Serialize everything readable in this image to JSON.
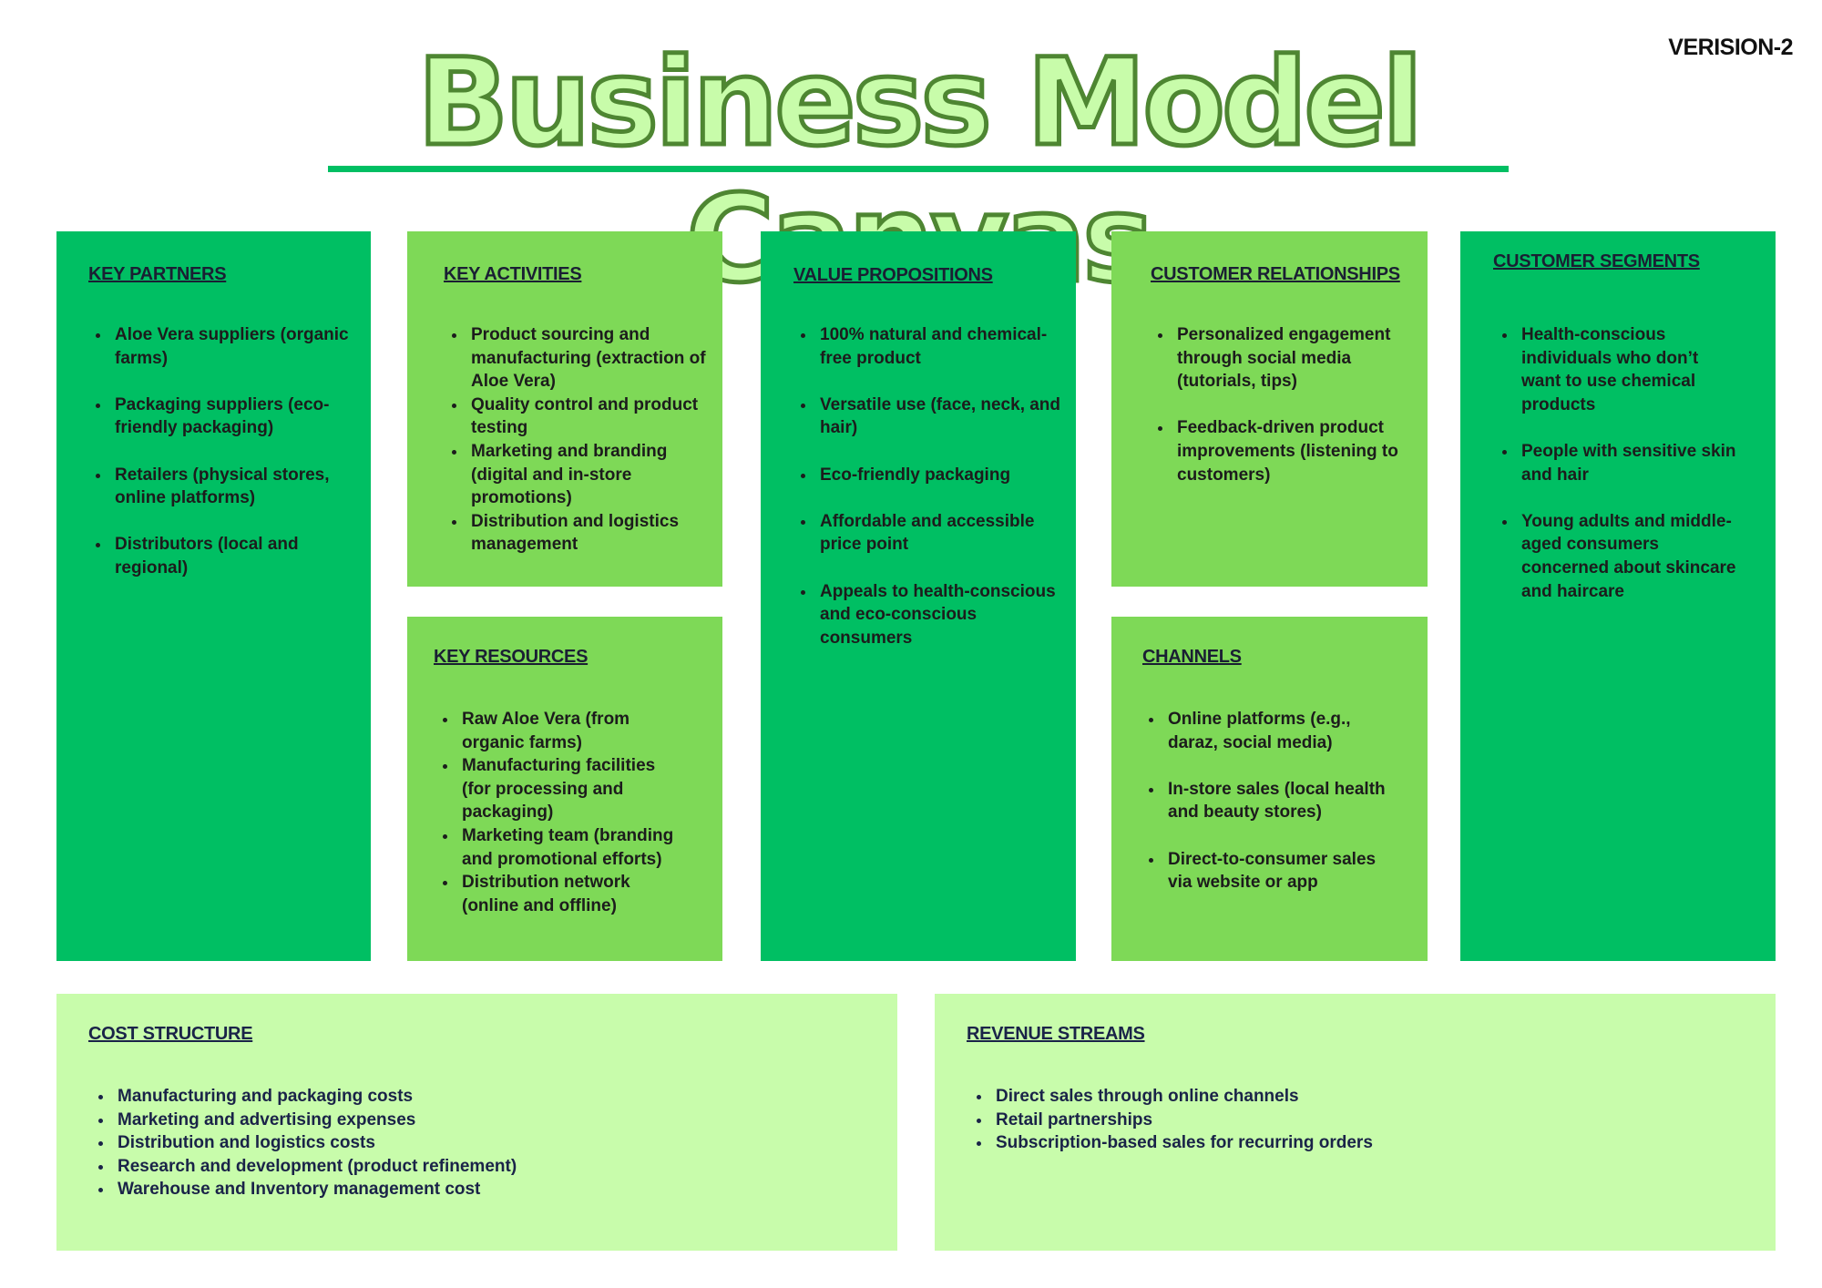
{
  "title": "Business Model Canvas",
  "version": "VERISION-2",
  "colors": {
    "dark_green": "#00bf63",
    "mid_green": "#7ed957",
    "light_green": "#c8fcab",
    "heading_navy": "#1a2348"
  },
  "key_partners": {
    "heading": "KEY PARTNERS",
    "items": [
      "Aloe Vera suppliers (organic farms)",
      "Packaging suppliers (eco-friendly packaging)",
      "Retailers (physical stores, online platforms)",
      "Distributors (local and regional)"
    ]
  },
  "key_activities": {
    "heading": "KEY ACTIVITIES",
    "items": [
      "Product sourcing and manufacturing (extraction of Aloe Vera)",
      "Quality control and product testing",
      "Marketing and branding (digital and in-store promotions)",
      "Distribution and logistics management"
    ]
  },
  "key_resources": {
    "heading": "KEY RESOURCES",
    "items": [
      "Raw Aloe Vera (from organic farms)",
      "Manufacturing facilities (for processing and packaging)",
      "Marketing team (branding and promotional efforts)",
      "Distribution network (online and offline)"
    ]
  },
  "value_propositions": {
    "heading": "VALUE PROPOSITIONS",
    "items": [
      "100% natural and chemical-free product",
      "Versatile use (face, neck, and hair)",
      "Eco-friendly packaging",
      "Affordable and accessible price point",
      "Appeals to health-conscious and eco-conscious consumers"
    ]
  },
  "customer_relationships": {
    "heading": "CUSTOMER RELATIONSHIPS",
    "items": [
      "Personalized engagement through social media (tutorials, tips)",
      "Feedback-driven product improvements (listening to customers)"
    ]
  },
  "channels": {
    "heading": "CHANNELS",
    "items": [
      "Online platforms (e.g., daraz, social media)",
      "In-store sales (local health and beauty stores)",
      "Direct-to-consumer sales via website or app"
    ]
  },
  "customer_segments": {
    "heading": "CUSTOMER SEGMENTS",
    "items": [
      "Health-conscious individuals who don’t want to use chemical products",
      "People with sensitive skin and hair",
      "Young adults and middle-aged consumers concerned about skincare and haircare"
    ]
  },
  "cost_structure": {
    "heading": "COST STRUCTURE",
    "items": [
      "Manufacturing and packaging costs",
      "Marketing and advertising expenses",
      "Distribution and logistics costs",
      "Research and development (product refinement)",
      "Warehouse and Inventory management cost"
    ]
  },
  "revenue_streams": {
    "heading": "REVENUE STREAMS",
    "items": [
      "Direct sales through online channels",
      "Retail partnerships",
      "Subscription-based sales for recurring orders"
    ]
  }
}
